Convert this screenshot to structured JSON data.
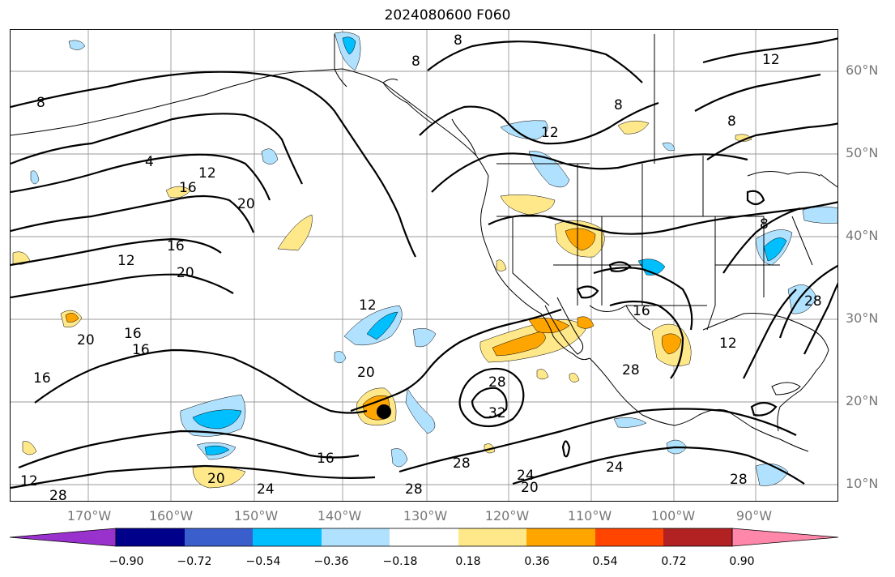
{
  "title": "2024080600 F060",
  "lat_labels": [
    "60°N",
    "50°N",
    "40°N",
    "30°N",
    "20°N",
    "10°N"
  ],
  "lon_labels": [
    "170°W",
    "160°W",
    "150°W",
    "140°W",
    "130°W",
    "120°W",
    "110°W",
    "100°W",
    "90°W"
  ],
  "colorbar": {
    "colors": [
      "#9932cc",
      "#00008b",
      "#3a5fcd",
      "#00bfff",
      "#b0e2ff",
      "#ffffff",
      "#ffe88a",
      "#ffa500",
      "#ff4500",
      "#b22222",
      "#ff88aa"
    ],
    "tick_labels": [
      "−0.90",
      "−0.72",
      "−0.54",
      "−0.36",
      "−0.18",
      "0.18",
      "0.36",
      "0.54",
      "0.72",
      "0.90"
    ]
  },
  "contour_labels": [
    "8",
    "8",
    "12",
    "8",
    "8",
    "12",
    "4",
    "12",
    "20",
    "16",
    "16",
    "12",
    "20",
    "16",
    "16",
    "20",
    "16",
    "12",
    "20",
    "28",
    "32",
    "28",
    "28",
    "24",
    "20",
    "24",
    "28",
    "20",
    "24",
    "28",
    "12",
    "16",
    "28",
    "16",
    "12",
    "28",
    "8",
    "8"
  ]
}
